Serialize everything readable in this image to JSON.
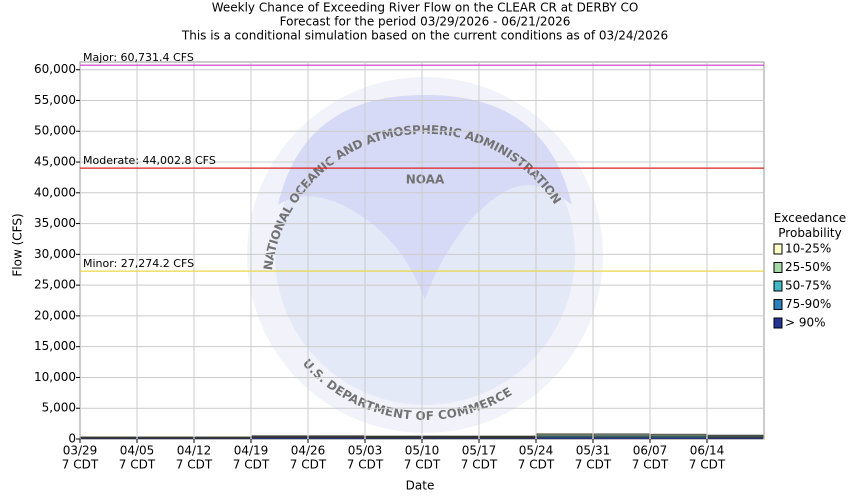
{
  "chart_data": {
    "type": "stacked-bar",
    "title": [
      "Weekly Chance of Exceeding River Flow on the CLEAR CR at DERBY CO",
      "Forecast for the period 03/29/2026 - 06/21/2026",
      "This is a conditional simulation based on the current conditions as of 03/24/2026"
    ],
    "xlabel": "Date",
    "ylabel": "Flow (CFS)",
    "categories": [
      [
        "03/29",
        "7 CDT"
      ],
      [
        "04/05",
        "7 CDT"
      ],
      [
        "04/12",
        "7 CDT"
      ],
      [
        "04/19",
        "7 CDT"
      ],
      [
        "04/26",
        "7 CDT"
      ],
      [
        "05/03",
        "7 CDT"
      ],
      [
        "05/10",
        "7 CDT"
      ],
      [
        "05/17",
        "7 CDT"
      ],
      [
        "05/24",
        "7 CDT"
      ],
      [
        "05/31",
        "7 CDT"
      ],
      [
        "06/07",
        "7 CDT"
      ],
      [
        "06/14",
        "7 CDT"
      ]
    ],
    "ylim": [
      0,
      61250
    ],
    "yticks": [
      0,
      {
        "value": 5000,
        "label": "5,000"
      },
      {
        "value": 10000,
        "label": "10,000"
      },
      {
        "value": 15000,
        "label": "15,000"
      },
      {
        "value": 20000,
        "label": "20,000"
      },
      {
        "value": 25000,
        "label": "25,000"
      },
      {
        "value": 30000,
        "label": "30,000"
      },
      {
        "value": 35000,
        "label": "35,000"
      },
      {
        "value": 40000,
        "label": "40,000"
      },
      {
        "value": 45000,
        "label": "45,000"
      },
      {
        "value": 50000,
        "label": "50,000"
      },
      {
        "value": 55000,
        "label": "55,000"
      },
      {
        "value": 60000,
        "label": "60,000"
      }
    ],
    "grid": true,
    "legend_title": "Exceedance Probability",
    "series": [
      {
        "name": "10-25%",
        "color": "#ffffc8",
        "values": [
          50,
          50,
          50,
          90,
          90,
          80,
          80,
          80,
          150,
          120,
          120,
          90
        ]
      },
      {
        "name": "25-50%",
        "color": "#a6d9a6",
        "values": [
          50,
          50,
          50,
          100,
          100,
          90,
          90,
          90,
          200,
          180,
          170,
          130
        ]
      },
      {
        "name": "50-75%",
        "color": "#41b6c4",
        "values": [
          50,
          50,
          50,
          80,
          80,
          80,
          80,
          80,
          150,
          150,
          140,
          110
        ]
      },
      {
        "name": "75-90%",
        "color": "#2c7fb8",
        "values": [
          50,
          50,
          50,
          80,
          80,
          70,
          70,
          70,
          150,
          150,
          140,
          120
        ]
      },
      {
        "name": "> 90%",
        "color": "#253494",
        "values": [
          150,
          150,
          150,
          200,
          200,
          180,
          180,
          180,
          250,
          250,
          230,
          200
        ]
      }
    ],
    "thresholds": [
      {
        "label": "Major: 60,731.4 CFS",
        "value": 60731.4,
        "color": "#cc33cc"
      },
      {
        "label": "Moderate: 44,002.8 CFS",
        "value": 44002.8,
        "color": "#dd2222"
      },
      {
        "label": "Minor: 27,274.2 CFS",
        "value": 27274.2,
        "color": "#e8d84a"
      }
    ],
    "watermark": {
      "logo": "NOAA",
      "top_text": "NATIONAL OCEANIC AND ATMOSPHERIC ADMINISTRATION",
      "bottom_text": "U.S. DEPARTMENT OF COMMERCE"
    }
  }
}
